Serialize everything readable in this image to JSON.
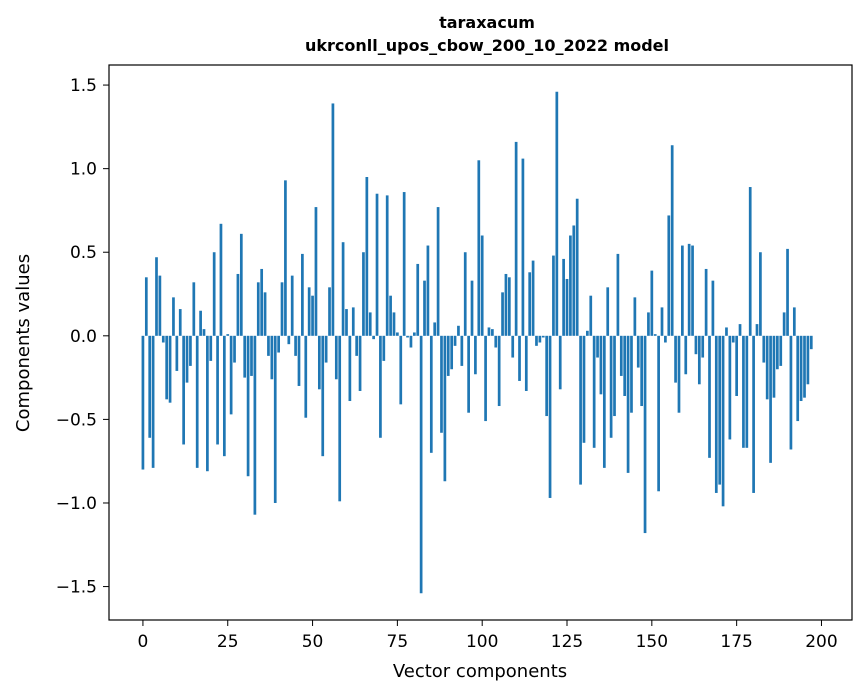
{
  "chart_data": {
    "type": "bar",
    "title": "taraxacum",
    "subtitle": "ukrconll_upos_cbow_200_10_2022 model",
    "xlabel": "Vector components",
    "ylabel": "Components values",
    "xlim": [
      -10,
      209
    ],
    "ylim": [
      -1.7,
      1.62
    ],
    "xticks": [
      0,
      25,
      50,
      75,
      100,
      125,
      150,
      175,
      200
    ],
    "xtick_labels": [
      "0",
      "25",
      "50",
      "75",
      "100",
      "125",
      "150",
      "175",
      "200"
    ],
    "yticks": [
      1.5,
      1.0,
      0.5,
      0.0,
      -0.5,
      -1.0,
      -1.5
    ],
    "ytick_labels": [
      "1.5",
      "1.0",
      "0.5",
      "0.0",
      "−0.5",
      "−1.0",
      "−1.5"
    ],
    "grid": false,
    "bar_color": "#1f77b4",
    "x_start": 0,
    "values": [
      -0.8,
      0.35,
      -0.61,
      -0.79,
      0.47,
      0.36,
      -0.04,
      -0.38,
      -0.4,
      0.23,
      -0.21,
      0.16,
      -0.65,
      -0.28,
      -0.18,
      0.32,
      -0.79,
      0.15,
      0.04,
      -0.81,
      -0.15,
      0.5,
      -0.65,
      0.67,
      -0.72,
      0.01,
      -0.47,
      -0.16,
      0.37,
      0.61,
      -0.25,
      -0.84,
      -0.24,
      -1.07,
      0.32,
      0.4,
      0.26,
      -0.12,
      -0.26,
      -1.0,
      -0.1,
      0.32,
      0.93,
      -0.05,
      0.36,
      -0.12,
      -0.3,
      0.49,
      -0.49,
      0.29,
      0.24,
      0.77,
      -0.32,
      -0.72,
      -0.16,
      0.29,
      1.39,
      -0.26,
      -0.99,
      0.56,
      0.16,
      -0.39,
      0.17,
      -0.12,
      -0.33,
      0.5,
      0.95,
      0.14,
      -0.02,
      0.85,
      -0.61,
      -0.15,
      0.84,
      0.24,
      0.14,
      0.02,
      -0.41,
      0.86,
      -0.01,
      -0.07,
      0.02,
      0.43,
      -1.54,
      0.33,
      0.54,
      -0.7,
      0.08,
      0.77,
      -0.58,
      -0.87,
      -0.24,
      -0.2,
      -0.06,
      0.06,
      -0.18,
      0.5,
      -0.46,
      0.33,
      -0.23,
      1.05,
      0.6,
      -0.51,
      0.05,
      0.04,
      -0.07,
      -0.42,
      0.26,
      0.37,
      0.35,
      -0.13,
      1.16,
      -0.27,
      1.06,
      -0.33,
      0.38,
      0.45,
      -0.06,
      -0.04,
      -0.01,
      -0.48,
      -0.97,
      0.48,
      1.46,
      -0.32,
      0.46,
      0.34,
      0.6,
      0.66,
      0.82,
      -0.89,
      -0.64,
      0.03,
      0.24,
      -0.67,
      -0.13,
      -0.35,
      -0.79,
      0.29,
      -0.61,
      -0.48,
      0.49,
      -0.24,
      -0.36,
      -0.82,
      -0.46,
      0.23,
      -0.19,
      -0.42,
      -1.18,
      0.14,
      0.39,
      0.01,
      -0.93,
      0.17,
      -0.04,
      0.72,
      1.14,
      -0.28,
      -0.46,
      0.54,
      -0.23,
      0.55,
      0.54,
      -0.11,
      -0.29,
      -0.13,
      0.4,
      -0.73,
      0.33,
      -0.94,
      -0.89,
      -1.02,
      0.05,
      -0.62,
      -0.04,
      -0.36,
      0.07,
      -0.67,
      -0.67,
      0.89,
      -0.94,
      0.07,
      0.5,
      -0.16,
      -0.38,
      -0.76,
      -0.37,
      -0.2,
      -0.18,
      0.14,
      0.52,
      -0.68,
      0.17,
      -0.51,
      -0.39,
      -0.37,
      -0.29,
      -0.08
    ]
  }
}
